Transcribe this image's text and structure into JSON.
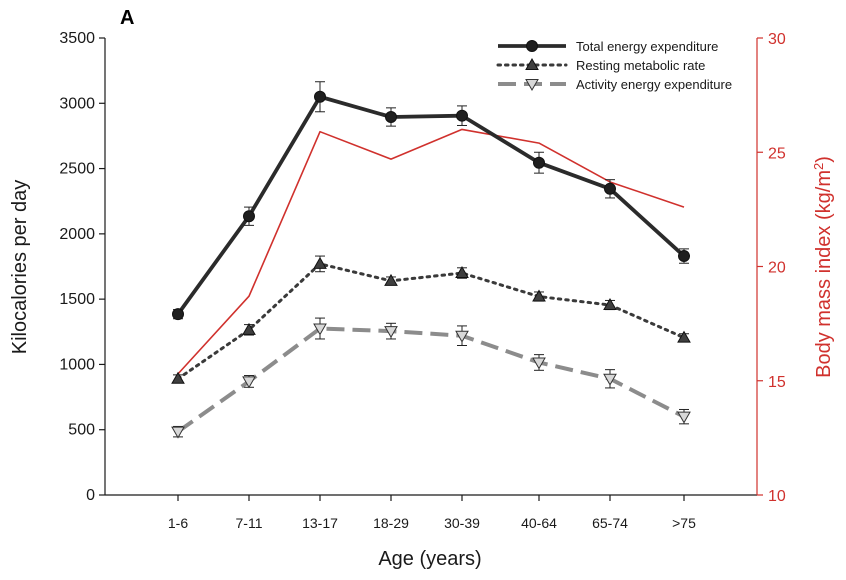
{
  "panel_label": "A",
  "chart_data": {
    "type": "line",
    "title": "",
    "xlabel": "Age (years)",
    "ylabel": "Kilocalories per day",
    "y2label_main": "Body mass index (kg/m",
    "y2label_sup": "2",
    "y2label_close": ")",
    "categories": [
      "1-6",
      "7-11",
      "13-17",
      "18-29",
      "30-39",
      "40-64",
      "65-74",
      ">75"
    ],
    "ylim": [
      0,
      3500
    ],
    "yticks": [
      0,
      500,
      1000,
      1500,
      2000,
      2500,
      3000,
      3500
    ],
    "y2lim": [
      10,
      30
    ],
    "y2ticks": [
      10,
      15,
      20,
      25,
      30
    ],
    "grid": false,
    "legend_position": "top-right",
    "colors": {
      "total": "#2b2b2b",
      "resting": "#3a3a3a",
      "activity": "#8c8c8c",
      "bmi": "#d0312d",
      "axis": "#1a1a1a",
      "axis_right": "#d0312d"
    },
    "series": [
      {
        "key": "total",
        "name": "Total energy expenditure",
        "axis": "left",
        "values": [
          1385,
          2135,
          3050,
          2895,
          2905,
          2545,
          2345,
          1830
        ],
        "err": [
          35,
          70,
          115,
          70,
          75,
          80,
          70,
          55
        ],
        "marker": "circle",
        "dash": "solid"
      },
      {
        "key": "resting",
        "name": "Resting metabolic rate",
        "axis": "left",
        "values": [
          890,
          1265,
          1770,
          1640,
          1700,
          1520,
          1455,
          1205
        ],
        "err": [
          30,
          40,
          60,
          30,
          40,
          35,
          35,
          30
        ],
        "marker": "triangle-up",
        "dash": "dotted"
      },
      {
        "key": "activity",
        "name": "Activity energy expenditure",
        "axis": "left",
        "values": [
          485,
          870,
          1275,
          1255,
          1220,
          1015,
          890,
          600
        ],
        "err": [
          40,
          45,
          80,
          60,
          75,
          60,
          70,
          55
        ],
        "marker": "triangle-down",
        "dash": "dashed"
      },
      {
        "key": "bmi",
        "name": "Body mass index",
        "axis": "right",
        "values": [
          15.3,
          18.7,
          25.9,
          24.7,
          26.0,
          25.4,
          23.7,
          22.6
        ],
        "marker": "none",
        "dash": "solid"
      }
    ]
  }
}
